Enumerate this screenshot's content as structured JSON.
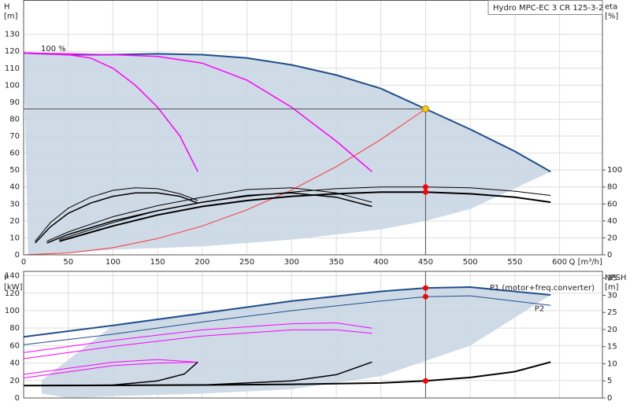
{
  "chart_data": [
    {
      "type": "line",
      "title": "Hydro MPC-EC 3 CR 125-3-2",
      "annotation": "100 %",
      "y_label": "H",
      "y_unit": "[m]",
      "y2_label": "eta",
      "y2_unit": "[%]",
      "x_label": "Q [m³/h]",
      "xlim": [
        0,
        648
      ],
      "xticks": [
        0,
        50,
        100,
        150,
        200,
        250,
        300,
        350,
        400,
        450,
        500,
        550,
        600
      ],
      "ylim": [
        0,
        150
      ],
      "yticks": [
        0,
        10,
        20,
        30,
        40,
        50,
        60,
        70,
        80,
        90,
        100,
        110,
        120,
        130
      ],
      "y2lim": [
        0,
        300
      ],
      "y2ticks": [
        0,
        20,
        40,
        60,
        80,
        100
      ],
      "grid": true,
      "series": [
        {
          "area": true,
          "color": "#c9d6e3",
          "x": [
            0,
            50,
            100,
            150,
            200,
            250,
            300,
            350,
            400,
            450,
            500,
            550,
            590,
            590,
            500,
            450,
            400,
            300,
            200,
            100,
            50,
            10,
            5
          ],
          "values": [
            119,
            118,
            118,
            118.5,
            118,
            116,
            112,
            106,
            98,
            86,
            74,
            61,
            49,
            49,
            27,
            20,
            15,
            9,
            5,
            3,
            1,
            0,
            0
          ]
        },
        {
          "color": "#1f4e8c",
          "width": 2,
          "x": [
            0,
            50,
            100,
            150,
            200,
            250,
            300,
            350,
            400,
            450,
            500,
            550,
            590
          ],
          "values": [
            119,
            118,
            118,
            118.5,
            118,
            116,
            112,
            106,
            98,
            86,
            74,
            61,
            49
          ]
        },
        {
          "color": "#ff00ff",
          "width": 1.5,
          "x": [
            0,
            50,
            75,
            100,
            125,
            150,
            175,
            195
          ],
          "values": [
            119,
            118,
            116,
            110,
            100,
            87,
            70,
            49
          ]
        },
        {
          "color": "#ff00ff",
          "width": 1.5,
          "x": [
            0,
            100,
            150,
            200,
            250,
            300,
            350,
            390
          ],
          "values": [
            119,
            118,
            117,
            113,
            103,
            87,
            67,
            49
          ]
        },
        {
          "color": "#ff3333",
          "width": 1,
          "x": [
            0,
            50,
            100,
            150,
            200,
            250,
            300,
            350,
            400,
            450
          ],
          "values": [
            0,
            1.1,
            4.2,
            9.6,
            17,
            26.5,
            38.2,
            52,
            68,
            86
          ]
        },
        {
          "color": "#000000",
          "width": 1,
          "axis": "y2",
          "x": [
            13,
            30,
            50,
            75,
            100,
            125,
            150,
            175,
            195
          ],
          "values": [
            16,
            38,
            55,
            68,
            76,
            79,
            78,
            72,
            64
          ]
        },
        {
          "color": "#000000",
          "width": 1.5,
          "axis": "y2",
          "x": [
            13,
            30,
            50,
            75,
            100,
            125,
            150,
            175,
            195
          ],
          "values": [
            14,
            33,
            49,
            61,
            69,
            73,
            73,
            69,
            61
          ]
        },
        {
          "color": "#000000",
          "width": 1,
          "axis": "y2",
          "x": [
            26,
            50,
            100,
            150,
            200,
            250,
            300,
            350,
            390
          ],
          "values": [
            16,
            27,
            45,
            58,
            68,
            77,
            79,
            73,
            62
          ]
        },
        {
          "color": "#000000",
          "width": 1.5,
          "axis": "y2",
          "x": [
            26,
            50,
            100,
            150,
            200,
            250,
            300,
            350,
            390
          ],
          "values": [
            14,
            24,
            40,
            52,
            62,
            70,
            73,
            68,
            57
          ]
        },
        {
          "color": "#000000",
          "width": 1,
          "axis": "y2",
          "x": [
            40,
            100,
            150,
            200,
            250,
            300,
            350,
            400,
            450,
            500,
            550,
            590
          ],
          "values": [
            18,
            38,
            52,
            62,
            69,
            74,
            78,
            80,
            80,
            79,
            75,
            70
          ]
        },
        {
          "color": "#000000",
          "width": 2,
          "axis": "y2",
          "x": [
            40,
            100,
            150,
            200,
            250,
            300,
            350,
            400,
            450,
            500,
            550,
            590
          ],
          "values": [
            16,
            34,
            47,
            57,
            64,
            69,
            72,
            74,
            74,
            72,
            68,
            62
          ]
        }
      ],
      "points": [
        {
          "x": 450,
          "y": 80,
          "axis": "y2",
          "color": "#ff0000"
        },
        {
          "x": 450,
          "y": 74,
          "axis": "y2",
          "color": "#ff0000"
        }
      ],
      "duty_point": {
        "x": 450,
        "y": 86,
        "color": "#ffcc00"
      }
    },
    {
      "type": "line",
      "y_label": "P",
      "y_unit": "[kW]",
      "y2_label": "NPSH",
      "y2_unit": "[m]",
      "xlim": [
        0,
        648
      ],
      "xticks": [
        0,
        50,
        100,
        150,
        200,
        250,
        300,
        350,
        400,
        450,
        500,
        550,
        600
      ],
      "x_tick_labels": false,
      "ylim": [
        0,
        145
      ],
      "yticks": [
        0,
        20,
        40,
        60,
        80,
        100,
        120,
        140
      ],
      "y2lim": [
        0,
        37
      ],
      "y2ticks": [
        0,
        5,
        10,
        15,
        20,
        25,
        30,
        35
      ],
      "grid": true,
      "series": [
        {
          "area": true,
          "color": "#c9d6e3",
          "x": [
            20,
            100,
            200,
            300,
            400,
            450,
            500,
            590,
            500,
            400,
            300,
            200,
            100,
            50,
            20
          ],
          "values": [
            20,
            83,
            97,
            111,
            122,
            126,
            127,
            118,
            60,
            25,
            10,
            5,
            2,
            0,
            5
          ]
        },
        {
          "name": "P1 (motor+freq.converter)",
          "color": "#1f4e8c",
          "width": 2,
          "x": [
            0,
            100,
            200,
            300,
            400,
            450,
            500,
            590
          ],
          "values": [
            70,
            83,
            97,
            111,
            122,
            126,
            127,
            118
          ]
        },
        {
          "name": "P2",
          "color": "#1f4e8c",
          "width": 1,
          "x": [
            0,
            100,
            200,
            300,
            400,
            450,
            500,
            590
          ],
          "values": [
            61,
            73,
            87,
            100,
            111,
            116,
            117,
            106
          ]
        },
        {
          "color": "#ff00ff",
          "width": 1,
          "x": [
            0,
            100,
            200,
            300,
            350,
            390
          ],
          "values": [
            52,
            66,
            78,
            85,
            86,
            80
          ]
        },
        {
          "color": "#ff00ff",
          "width": 1,
          "x": [
            0,
            100,
            200,
            300,
            350,
            390
          ],
          "values": [
            45,
            59,
            71,
            78,
            78,
            74
          ]
        },
        {
          "color": "#ff00ff",
          "width": 1,
          "x": [
            0,
            50,
            100,
            150,
            195
          ],
          "values": [
            27,
            34,
            41,
            44,
            41
          ]
        },
        {
          "color": "#ff00ff",
          "width": 1,
          "x": [
            0,
            50,
            100,
            150,
            195
          ],
          "values": [
            23,
            30,
            37,
            40,
            41
          ]
        },
        {
          "color": "#000000",
          "width": 1.5,
          "axis": "y2",
          "x": [
            0,
            100,
            150,
            180,
            195
          ],
          "values": [
            3.6,
            3.8,
            5,
            7,
            10.5
          ]
        },
        {
          "color": "#000000",
          "width": 1.5,
          "axis": "y2",
          "x": [
            0,
            200,
            300,
            350,
            390
          ],
          "values": [
            3.6,
            3.8,
            5,
            6.8,
            10.5
          ]
        },
        {
          "color": "#000000",
          "width": 2,
          "axis": "y2",
          "x": [
            0,
            100,
            200,
            300,
            400,
            450,
            500,
            550,
            590
          ],
          "values": [
            3.6,
            3.7,
            3.8,
            4,
            4.4,
            5,
            6,
            7.7,
            10.5
          ]
        }
      ],
      "points": [
        {
          "x": 450,
          "y": 126,
          "color": "#ff0000"
        },
        {
          "x": 450,
          "y": 116,
          "color": "#ff0000"
        },
        {
          "x": 450,
          "y": 5,
          "axis": "y2",
          "color": "#ff0000"
        }
      ]
    }
  ]
}
